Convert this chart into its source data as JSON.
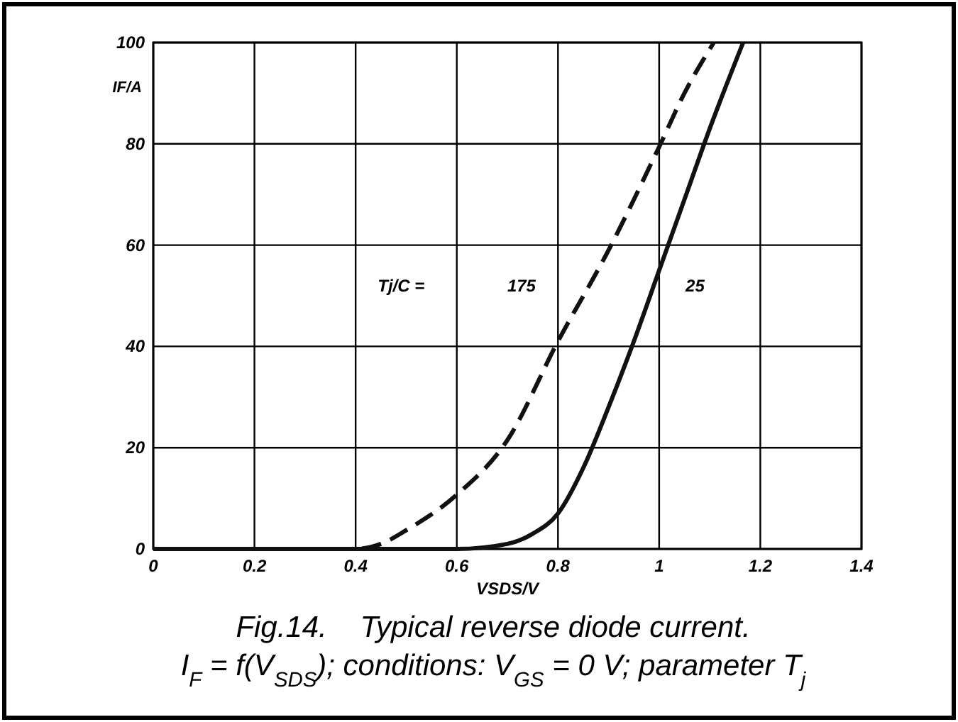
{
  "chart_data": {
    "type": "line",
    "xlabel": "VSDS/V",
    "ylabel": "IF/A",
    "title": "Fig.14.    Typical reverse diode current.",
    "subtitle": "I$_{F}$ = f(V$_{SDS}$); conditions: V$_{GS}$ = 0 V; parameter T$_{j}$",
    "xlim": [
      0,
      1.4
    ],
    "xticks": [
      0,
      0.2,
      0.4,
      0.6,
      0.8,
      1,
      1.2,
      1.4
    ],
    "ylim": [
      0,
      100
    ],
    "yticks": [
      0,
      20,
      40,
      60,
      80,
      100
    ],
    "grid": true,
    "series": [
      {
        "name": "175",
        "color": "#111111",
        "line_style": "dashed",
        "x": [
          0,
          0.2,
          0.4,
          0.45,
          0.5,
          0.6,
          0.7,
          0.8,
          0.9,
          1.0,
          1.05,
          1.108
        ],
        "values": [
          0,
          0,
          0,
          1,
          3.7,
          10.7,
          21.5,
          41,
          59,
          79.4,
          90,
          100
        ]
      },
      {
        "name": "25",
        "color": "#111111",
        "line_style": "solid",
        "x": [
          0,
          0.2,
          0.4,
          0.6,
          0.7,
          0.75,
          0.8,
          0.85,
          0.9,
          0.95,
          1.0,
          1.05,
          1.1,
          1.166
        ],
        "values": [
          0,
          0,
          0,
          0,
          1,
          3,
          7,
          16,
          28,
          41,
          55,
          69,
          83,
          100
        ]
      }
    ],
    "legend_title": "Tj/C ="
  }
}
